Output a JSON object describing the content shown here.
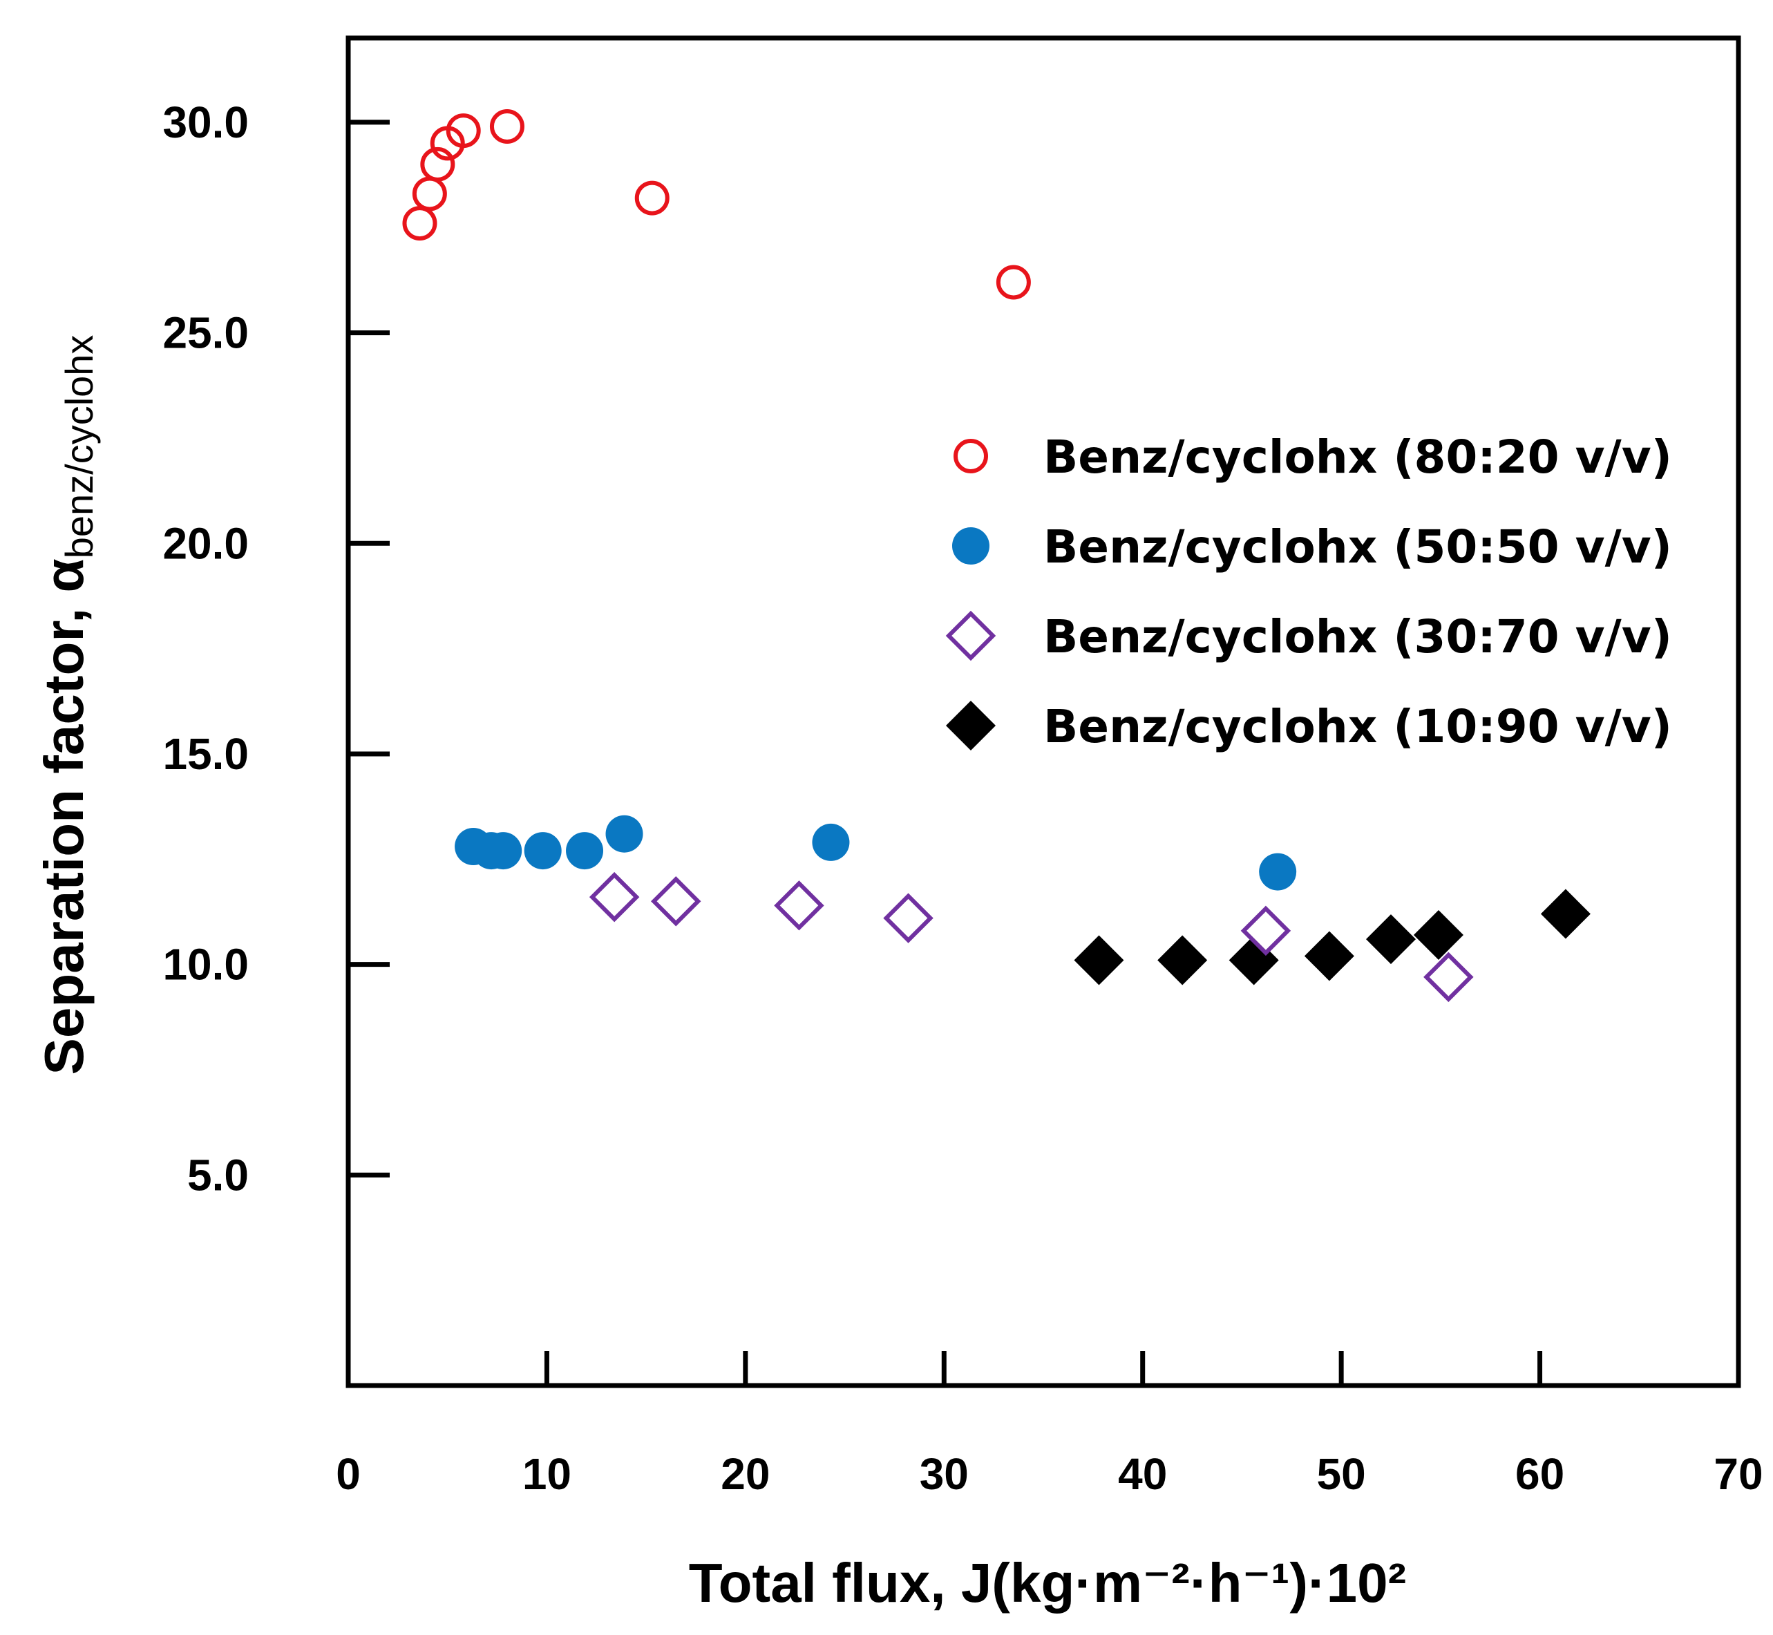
{
  "chart_data": {
    "type": "scatter",
    "title": "",
    "xlabel": "Total flux, J(kg·m⁻²·h⁻¹)·10²",
    "ylabel": {
      "main": "Separation factor, α",
      "subscript": "benz/cyclohx"
    },
    "xlim": [
      0,
      70
    ],
    "ylim": [
      0,
      32
    ],
    "x_ticks": [
      0,
      10,
      20,
      30,
      40,
      50,
      60,
      70
    ],
    "x_tick_labels": [
      "0",
      "10",
      "20",
      "30",
      "40",
      "50",
      "60",
      "70"
    ],
    "y_ticks": [
      5,
      10,
      15,
      20,
      25,
      30
    ],
    "y_tick_labels": [
      "5.0",
      "10.0",
      "15.0",
      "20.0",
      "25.0",
      "30.0"
    ],
    "grid": false,
    "legend_position": "right-middle",
    "series": [
      {
        "name": "Benz/cyclohx (80:20 v/v)",
        "marker": "circle-open",
        "color": "#e8141b",
        "x": [
          3.6,
          4.1,
          4.5,
          5.0,
          5.8,
          8.0,
          15.3,
          33.5
        ],
        "y": [
          27.6,
          28.3,
          29.0,
          29.5,
          29.8,
          29.9,
          28.2,
          26.2
        ]
      },
      {
        "name": "Benz/cyclohx (50:50 v/v)",
        "marker": "circle-filled",
        "color": "#0a78c2",
        "x": [
          6.3,
          7.2,
          7.8,
          9.8,
          11.9,
          13.9,
          24.3,
          46.8
        ],
        "y": [
          12.8,
          12.7,
          12.7,
          12.7,
          12.7,
          13.1,
          12.9,
          12.2
        ]
      },
      {
        "name": "Benz/cyclohx (30:70 v/v)",
        "marker": "diamond-open",
        "color": "#7030a0",
        "x": [
          13.4,
          16.5,
          22.7,
          28.2,
          46.2,
          55.4
        ],
        "y": [
          11.6,
          11.5,
          11.4,
          11.1,
          10.8,
          9.7
        ]
      },
      {
        "name": "Benz/cyclohx (10:90 v/v)",
        "marker": "diamond-filled",
        "color": "#000000",
        "x": [
          37.8,
          42.0,
          45.6,
          49.4,
          52.5,
          54.9,
          61.3
        ],
        "y": [
          10.1,
          10.1,
          10.1,
          10.2,
          10.6,
          10.7,
          11.2
        ]
      }
    ]
  }
}
